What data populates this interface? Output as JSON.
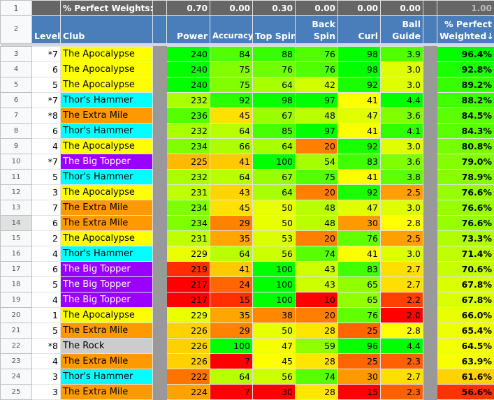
{
  "weights_row": {
    "row_number": "1",
    "label": "% Perfect Weights:",
    "power": "0.70",
    "accuracy": "0.00",
    "top_spin": "0.30",
    "back_spin": "0.00",
    "curl": "0.00",
    "ball_guide": "0.00",
    "total": "1.00"
  },
  "header_row": {
    "row_number": "2",
    "level": "Level",
    "club": "Club",
    "power": "Power",
    "accuracy": "Accuracy",
    "top_spin": "Top Spin",
    "back_spin_1": "Back",
    "back_spin_2": "Spin",
    "curl": "Curl",
    "ball_guide_1": "Ball",
    "ball_guide_2": "Guide",
    "pct_1": "% Perfect",
    "pct_2": "Weighted↓"
  },
  "club_colors": {
    "The Apocalypse": "#ffff00",
    "Thor's Hammer": "#00ffff",
    "The Extra Mile": "#ff9900",
    "The Big Topper": "#9900ff",
    "The Rock": "#cccccc"
  },
  "selected_row": "14",
  "rows": [
    {
      "n": "3",
      "level": "*7",
      "club": "The Apocalypse",
      "power": 240,
      "accuracy": 84,
      "top_spin": 88,
      "back_spin": 76,
      "curl": 98,
      "ball_guide": "3.9",
      "pct": "96.4%"
    },
    {
      "n": "4",
      "level": "6",
      "club": "The Apocalypse",
      "power": 240,
      "accuracy": 75,
      "top_spin": 76,
      "back_spin": 76,
      "curl": 98,
      "ball_guide": "3.0",
      "pct": "92.8%"
    },
    {
      "n": "5",
      "level": "5",
      "club": "The Apocalypse",
      "power": 240,
      "accuracy": 75,
      "top_spin": 64,
      "back_spin": 42,
      "curl": 92,
      "ball_guide": "3.0",
      "pct": "89.2%"
    },
    {
      "n": "6",
      "level": "*7",
      "club": "Thor's Hammer",
      "power": 232,
      "accuracy": 92,
      "top_spin": 98,
      "back_spin": 97,
      "curl": 41,
      "ball_guide": "4.4",
      "pct": "88.2%"
    },
    {
      "n": "7",
      "level": "*8",
      "club": "The Extra Mile",
      "power": 236,
      "accuracy": 45,
      "top_spin": 67,
      "back_spin": 48,
      "curl": 47,
      "ball_guide": "3.6",
      "pct": "84.5%"
    },
    {
      "n": "8",
      "level": "6",
      "club": "Thor's Hammer",
      "power": 232,
      "accuracy": 64,
      "top_spin": 85,
      "back_spin": 97,
      "curl": 41,
      "ball_guide": "4.1",
      "pct": "84.3%"
    },
    {
      "n": "9",
      "level": "4",
      "club": "The Apocalypse",
      "power": 234,
      "accuracy": 66,
      "top_spin": 64,
      "back_spin": 20,
      "curl": 92,
      "ball_guide": "3.0",
      "pct": "80.8%"
    },
    {
      "n": "10",
      "level": "*7",
      "club": "The Big Topper",
      "power": 225,
      "accuracy": 41,
      "top_spin": 100,
      "back_spin": 54,
      "curl": 83,
      "ball_guide": "3.6",
      "pct": "79.0%"
    },
    {
      "n": "11",
      "level": "5",
      "club": "Thor's Hammer",
      "power": 232,
      "accuracy": 64,
      "top_spin": 67,
      "back_spin": 75,
      "curl": 41,
      "ball_guide": "3.8",
      "pct": "78.9%"
    },
    {
      "n": "12",
      "level": "3",
      "club": "The Apocalypse",
      "power": 231,
      "accuracy": 43,
      "top_spin": 64,
      "back_spin": 20,
      "curl": 92,
      "ball_guide": "2.5",
      "pct": "76.6%"
    },
    {
      "n": "13",
      "level": "7",
      "club": "The Extra Mile",
      "power": 234,
      "accuracy": 45,
      "top_spin": 50,
      "back_spin": 48,
      "curl": 47,
      "ball_guide": "3.0",
      "pct": "76.6%"
    },
    {
      "n": "14",
      "level": "6",
      "club": "The Extra Mile",
      "power": 234,
      "accuracy": 29,
      "top_spin": 50,
      "back_spin": 48,
      "curl": 30,
      "ball_guide": "2.8",
      "pct": "76.6%"
    },
    {
      "n": "15",
      "level": "2",
      "club": "The Apocalypse",
      "power": 231,
      "accuracy": 35,
      "top_spin": 53,
      "back_spin": 20,
      "curl": 76,
      "ball_guide": "2.5",
      "pct": "73.3%"
    },
    {
      "n": "16",
      "level": "4",
      "club": "Thor's Hammer",
      "power": 229,
      "accuracy": 64,
      "top_spin": 56,
      "back_spin": 74,
      "curl": 41,
      "ball_guide": "3.0",
      "pct": "71.4%"
    },
    {
      "n": "17",
      "level": "6",
      "club": "The Big Topper",
      "power": 219,
      "accuracy": 41,
      "top_spin": 100,
      "back_spin": 43,
      "curl": 83,
      "ball_guide": "2.7",
      "pct": "70.6%"
    },
    {
      "n": "18",
      "level": "5",
      "club": "The Big Topper",
      "power": 217,
      "accuracy": 24,
      "top_spin": 100,
      "back_spin": 43,
      "curl": 65,
      "ball_guide": "2.7",
      "pct": "67.8%"
    },
    {
      "n": "19",
      "level": "4",
      "club": "The Big Topper",
      "power": 217,
      "accuracy": 15,
      "top_spin": 100,
      "back_spin": 10,
      "curl": 65,
      "ball_guide": "2.2",
      "pct": "67.8%"
    },
    {
      "n": "20",
      "level": "1",
      "club": "The Apocalypse",
      "power": 229,
      "accuracy": 35,
      "top_spin": 38,
      "back_spin": 20,
      "curl": 76,
      "ball_guide": "2.0",
      "pct": "66.0%"
    },
    {
      "n": "21",
      "level": "5",
      "club": "The Extra Mile",
      "power": 226,
      "accuracy": 29,
      "top_spin": 50,
      "back_spin": 28,
      "curl": 25,
      "ball_guide": "2.8",
      "pct": "65.4%"
    },
    {
      "n": "22",
      "level": "*8",
      "club": "The Rock",
      "power": 226,
      "accuracy": 100,
      "top_spin": 47,
      "back_spin": 59,
      "curl": 96,
      "ball_guide": "4.4",
      "pct": "64.5%"
    },
    {
      "n": "23",
      "level": "4",
      "club": "The Extra Mile",
      "power": 226,
      "accuracy": 7,
      "top_spin": 45,
      "back_spin": 28,
      "curl": 25,
      "ball_guide": "2.3",
      "pct": "63.9%"
    },
    {
      "n": "24",
      "level": "3",
      "club": "Thor's Hammer",
      "power": 222,
      "accuracy": 64,
      "top_spin": 56,
      "back_spin": 74,
      "curl": 30,
      "ball_guide": "2.7",
      "pct": "61.6%"
    },
    {
      "n": "25",
      "level": "3",
      "club": "The Extra Mile",
      "power": 224,
      "accuracy": 7,
      "top_spin": 30,
      "back_spin": 28,
      "curl": 15,
      "ball_guide": "2.3",
      "pct": "56.6%"
    }
  ]
}
